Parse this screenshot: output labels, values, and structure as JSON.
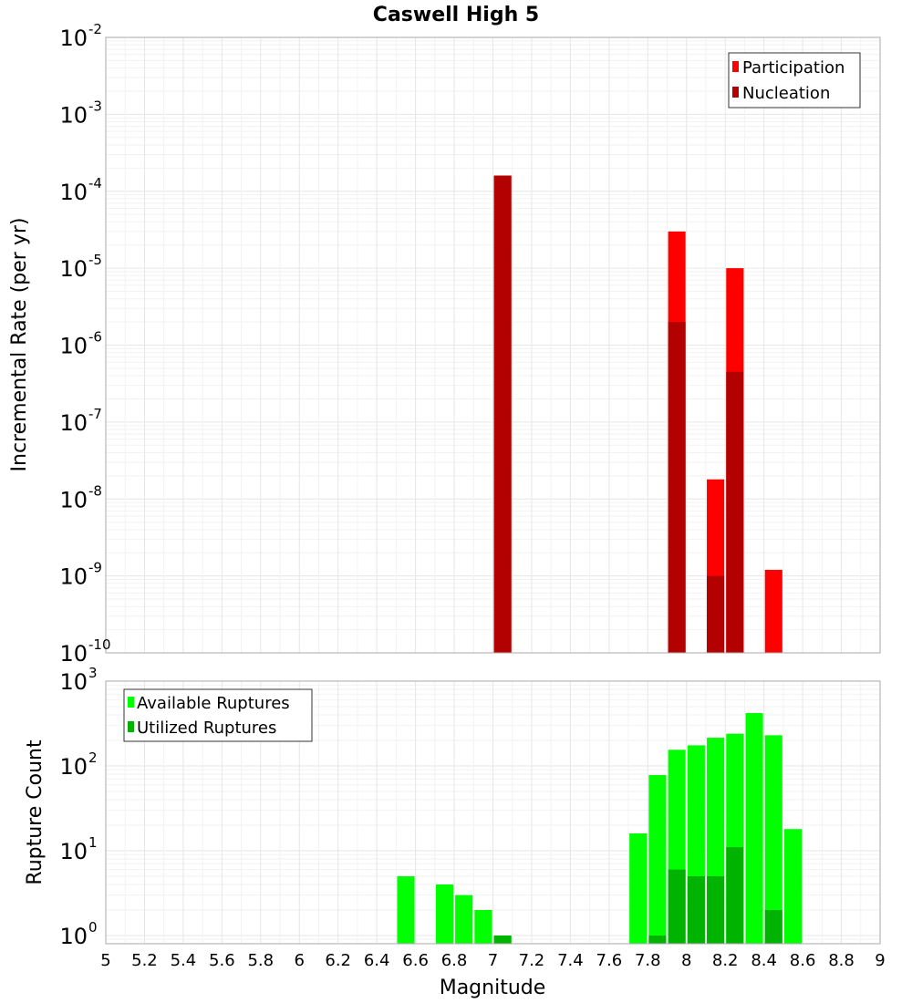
{
  "chart_data": [
    {
      "type": "bar",
      "title": "Caswell High 5",
      "xlabel": "Magnitude",
      "ylabel": "Incremental Rate (per yr)",
      "yscale": "log",
      "xlim": [
        5,
        9
      ],
      "ylim": [
        1e-10,
        0.01
      ],
      "bar_width": 0.09,
      "legend_position": "top-right",
      "series": [
        {
          "name": "Participation",
          "color": "#ff0000",
          "x": [
            7.05,
            7.95,
            8.15,
            8.25,
            8.45
          ],
          "values": [
            0.00016,
            3e-05,
            1.8e-08,
            1e-05,
            1.2e-09
          ]
        },
        {
          "name": "Nucleation",
          "color": "#b30000",
          "x": [
            7.05,
            7.95,
            8.15,
            8.25
          ],
          "values": [
            0.00016,
            2e-06,
            1e-09,
            4.5e-07
          ]
        }
      ]
    },
    {
      "type": "bar",
      "title": "",
      "xlabel": "Magnitude",
      "ylabel": "Rupture Count",
      "yscale": "log",
      "xlim": [
        5,
        9
      ],
      "ylim": [
        0.8,
        1000
      ],
      "bar_width": 0.09,
      "legend_position": "top-left",
      "series": [
        {
          "name": "Available Ruptures",
          "color": "#00ff00",
          "x": [
            6.55,
            6.75,
            6.85,
            6.95,
            7.05,
            7.75,
            7.85,
            7.95,
            8.05,
            8.15,
            8.25,
            8.35,
            8.45,
            8.55
          ],
          "values": [
            5,
            4,
            3,
            2,
            1,
            16,
            78,
            155,
            175,
            215,
            240,
            420,
            230,
            18
          ]
        },
        {
          "name": "Utilized Ruptures",
          "color": "#00b300",
          "x": [
            7.05,
            7.85,
            7.95,
            8.05,
            8.15,
            8.25,
            8.45
          ],
          "values": [
            1,
            1,
            6,
            5,
            5,
            11,
            2
          ]
        }
      ]
    }
  ],
  "x_ticks": [
    "5",
    "5.2",
    "5.4",
    "5.6",
    "5.8",
    "6",
    "6.2",
    "6.4",
    "6.6",
    "6.8",
    "7",
    "7.2",
    "7.4",
    "7.6",
    "7.8",
    "8",
    "8.2",
    "8.4",
    "8.6",
    "8.8",
    "9"
  ],
  "top_y_ticks": [
    {
      "base": "10",
      "exp": "-10"
    },
    {
      "base": "10",
      "exp": "-9"
    },
    {
      "base": "10",
      "exp": "-8"
    },
    {
      "base": "10",
      "exp": "-7"
    },
    {
      "base": "10",
      "exp": "-6"
    },
    {
      "base": "10",
      "exp": "-5"
    },
    {
      "base": "10",
      "exp": "-4"
    },
    {
      "base": "10",
      "exp": "-3"
    },
    {
      "base": "10",
      "exp": "-2"
    }
  ],
  "bottom_y_ticks": [
    {
      "base": "10",
      "exp": "0"
    },
    {
      "base": "10",
      "exp": "1"
    },
    {
      "base": "10",
      "exp": "2"
    },
    {
      "base": "10",
      "exp": "3"
    }
  ],
  "colors": {
    "gridline": "#e6e6e6",
    "minor_gridline": "#f2f2f2",
    "frame": "#aaaaaa"
  }
}
